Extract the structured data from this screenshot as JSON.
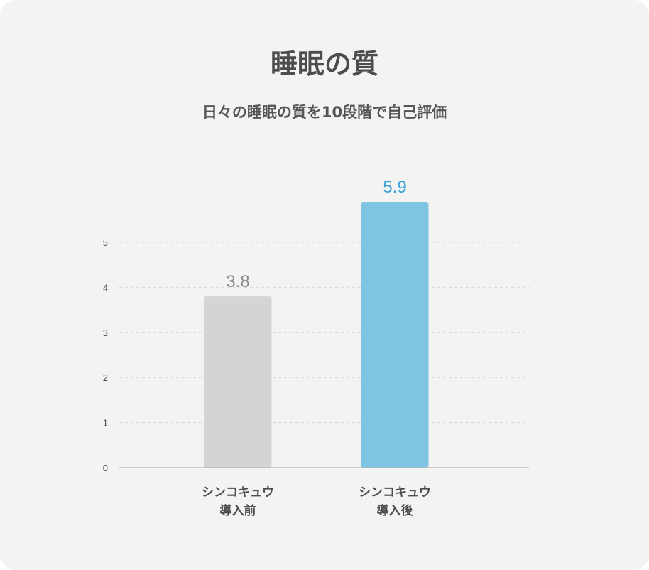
{
  "chart_data": {
    "type": "bar",
    "title": "睡眠の質",
    "subtitle": "日々の睡眠の質を10段階で自己評価",
    "categories": [
      {
        "line1": "シンコキュウ",
        "line2": "導入前"
      },
      {
        "line1": "シンコキュウ",
        "line2": "導入後"
      }
    ],
    "values": [
      3.8,
      5.9
    ],
    "value_labels": [
      "3.8",
      "5.9"
    ],
    "ylim": [
      0,
      5.9
    ],
    "yticks": [
      0,
      1,
      2,
      3,
      4,
      5
    ],
    "grid": true,
    "legend": "none",
    "colors": {
      "bar_before": "#d3d4d3",
      "bar_after": "#80c4e4",
      "label_before": "#8c8c8c",
      "label_after": "#3aa3dc",
      "grid": "#d6d6d6",
      "axis": "#b5b5b5",
      "tick_text": "#4d4d4d"
    }
  }
}
